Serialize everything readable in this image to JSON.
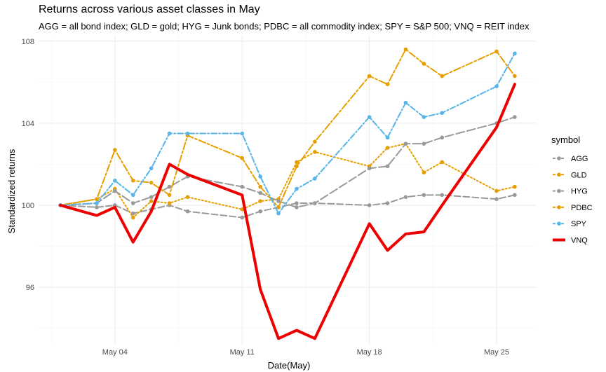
{
  "chart_data": {
    "type": "line",
    "title": "Returns across various asset classes in May",
    "subtitle": "AGG = all bond index; GLD = gold; HYG = Junk bonds; PDBC = all commodity index; SPY = S&P 500; VNQ = REIT index",
    "xlabel": "Date(May)",
    "ylabel": "Standardized returns",
    "x": [
      1,
      3,
      4,
      5,
      6,
      7,
      8,
      11,
      12,
      13,
      14,
      15,
      18,
      19,
      20,
      21,
      22,
      25,
      26
    ],
    "xlim": [
      -0.2,
      27.2
    ],
    "ylim": [
      93.2,
      108.3
    ],
    "xticks": [
      4,
      11,
      18,
      25
    ],
    "xtick_labels": [
      "May 04",
      "May 11",
      "May 18",
      "May 25"
    ],
    "yticks": [
      96,
      100,
      104,
      108
    ],
    "ytick_labels": [
      "96",
      "100",
      "104",
      "108"
    ],
    "grid": true,
    "legend": {
      "title": "symbol",
      "position": "right"
    },
    "series": [
      {
        "name": "AGG",
        "color": "#999999",
        "dash": "9,4",
        "width": 2,
        "points": true,
        "values": [
          100.0,
          99.9,
          100.0,
          99.6,
          99.8,
          100.0,
          99.7,
          99.4,
          99.7,
          99.9,
          100.1,
          100.1,
          100.0,
          100.1,
          100.4,
          100.5,
          100.5,
          100.3,
          100.5
        ]
      },
      {
        "name": "GLD",
        "color": "#E69F00",
        "dash": "2,3",
        "width": 2,
        "points": true,
        "values": [
          100.0,
          100.3,
          100.8,
          99.4,
          100.2,
          100.1,
          100.4,
          99.8,
          100.2,
          100.3,
          102.1,
          102.6,
          101.9,
          102.8,
          103.0,
          101.6,
          102.1,
          100.7,
          100.9
        ]
      },
      {
        "name": "HYG",
        "color": "#999999",
        "dash": "12,4",
        "width": 2,
        "points": true,
        "values": [
          100.0,
          100.1,
          100.7,
          100.1,
          100.4,
          100.9,
          101.4,
          100.9,
          100.6,
          100.2,
          99.9,
          100.1,
          101.8,
          101.9,
          103.0,
          103.0,
          103.3,
          104.0,
          104.3
        ]
      },
      {
        "name": "PDBC",
        "color": "#E69F00",
        "dash": "10,3,3,3",
        "width": 2,
        "points": true,
        "values": [
          100.0,
          100.3,
          102.7,
          101.2,
          101.1,
          100.5,
          103.4,
          102.3,
          100.9,
          99.9,
          101.9,
          103.1,
          106.3,
          105.9,
          107.6,
          106.9,
          106.3,
          107.5,
          106.3
        ]
      },
      {
        "name": "SPY",
        "color": "#56B4E9",
        "dash": "8,3,2,3",
        "width": 2,
        "points": true,
        "values": [
          100.0,
          100.1,
          101.2,
          100.5,
          101.8,
          103.5,
          103.5,
          103.5,
          101.4,
          99.6,
          100.8,
          101.3,
          104.3,
          103.3,
          105.0,
          104.3,
          104.5,
          105.8,
          107.4
        ]
      },
      {
        "name": "VNQ",
        "color": "#EE0000",
        "dash": "",
        "width": 4,
        "points": false,
        "values": [
          100.0,
          99.5,
          99.9,
          98.2,
          99.7,
          102.0,
          101.5,
          100.5,
          95.9,
          93.5,
          93.9,
          93.5,
          99.1,
          97.8,
          98.6,
          98.7,
          100.0,
          103.8,
          105.9
        ]
      }
    ]
  }
}
